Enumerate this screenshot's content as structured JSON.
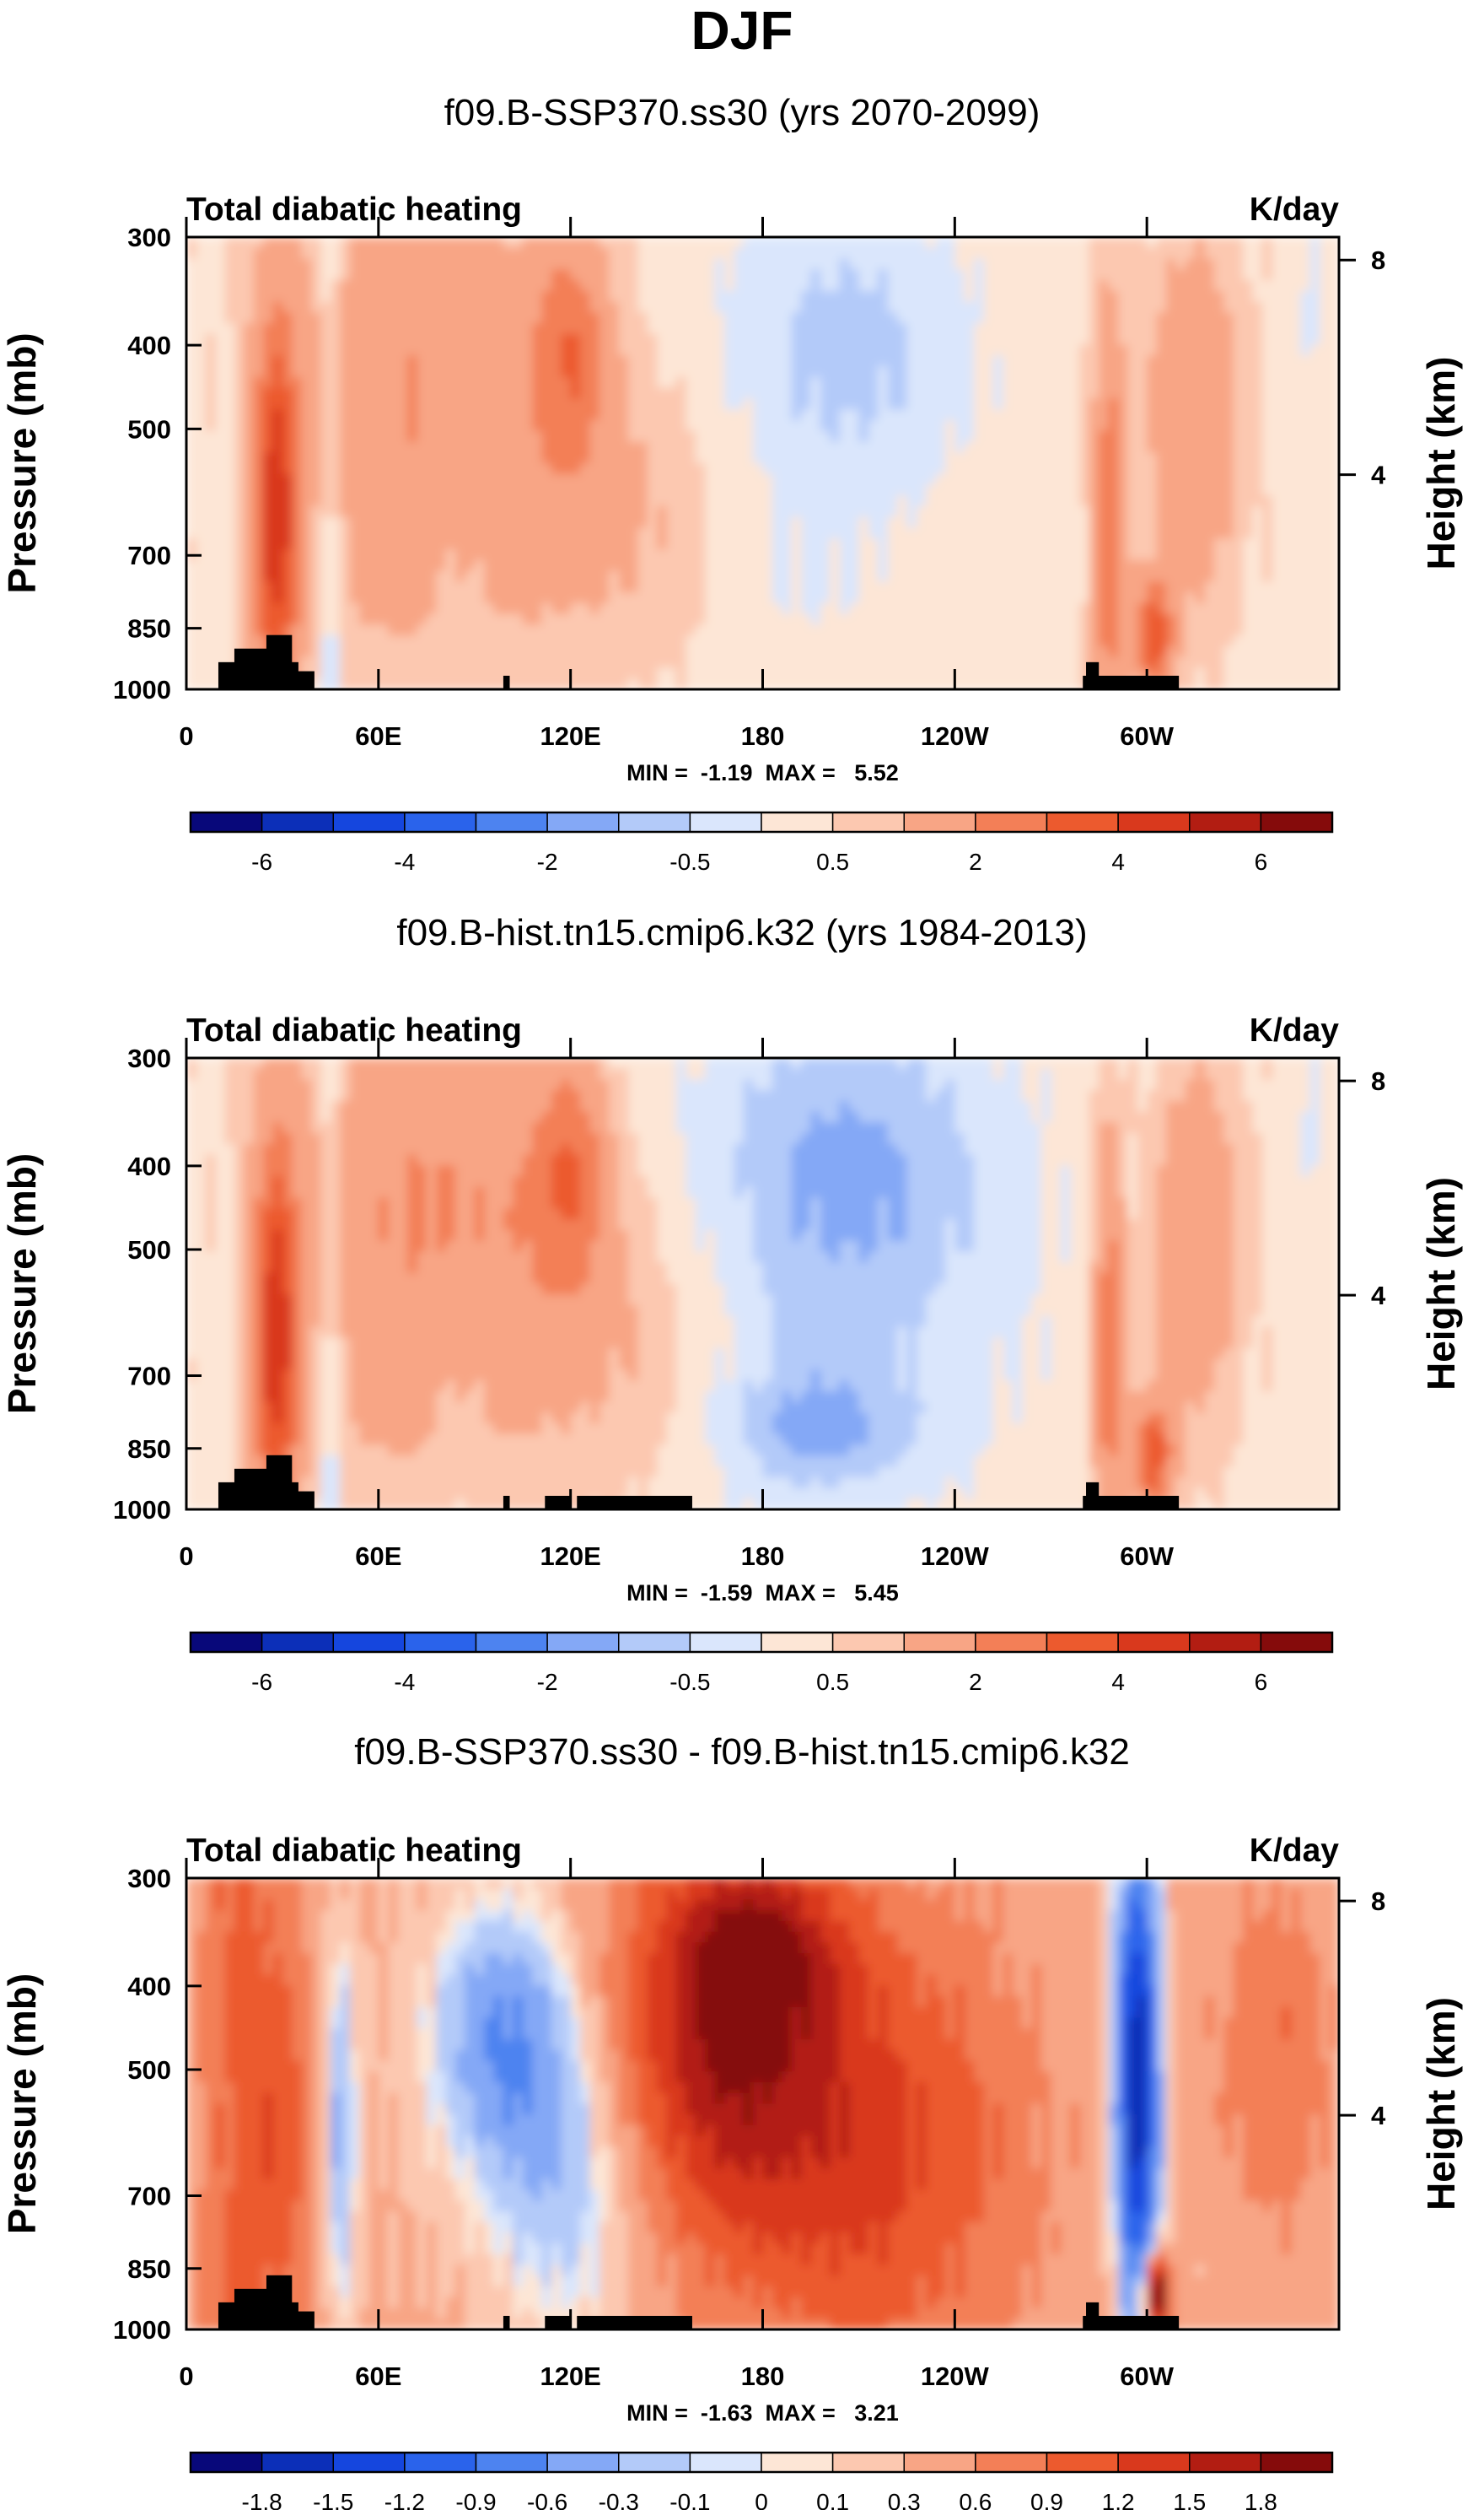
{
  "figure": {
    "title": "DJF"
  },
  "colors": {
    "ramp_neg": [
      "#08087a",
      "#0c2fb8",
      "#1546de",
      "#2a63eb",
      "#4d83f0",
      "#84a8f6",
      "#b3caf9",
      "#dae6fc"
    ],
    "ramp_pos": [
      "#fde6d6",
      "#fcc8b0",
      "#f8a585",
      "#f37f57",
      "#ec5a2e",
      "#d9391d",
      "#b21d12",
      "#850b0b"
    ],
    "terrain": "#000000"
  },
  "chart_data": [
    {
      "type": "heatmap",
      "title": "f09.B-SSP370.ss30 (yrs 2070-2099)",
      "left_label": "Total diabatic heating",
      "right_label": "K/day",
      "ylabel": "Pressure (mb)",
      "ylabel_right": "Height (km)",
      "x_ticks": [
        "0",
        "60E",
        "120E",
        "180",
        "120W",
        "60W"
      ],
      "x_tick_lon": [
        0,
        60,
        120,
        180,
        240,
        300
      ],
      "xlim": [
        0,
        360
      ],
      "y_ticks": [
        "300",
        "400",
        "500",
        "700",
        "850",
        "1000"
      ],
      "y_tick_p": [
        300,
        400,
        500,
        700,
        850,
        1000
      ],
      "ylim": [
        1000,
        300
      ],
      "right_ticks": [
        "8",
        "4"
      ],
      "right_tick_km": [
        8,
        4
      ],
      "stats": "MIN =  -1.19  MAX =   5.52",
      "min": -1.19,
      "max": 5.52,
      "colorbar_labels": [
        "-6",
        "-4",
        "-2",
        "-0.5",
        "0.5",
        "2",
        "4",
        "6"
      ],
      "colorbar_label_boundaries": [
        1,
        3,
        5,
        7,
        9,
        11,
        13,
        15
      ]
    },
    {
      "type": "heatmap",
      "title": "f09.B-hist.tn15.cmip6.k32 (yrs 1984-2013)",
      "left_label": "Total diabatic heating",
      "right_label": "K/day",
      "ylabel": "Pressure (mb)",
      "ylabel_right": "Height (km)",
      "x_ticks": [
        "0",
        "60E",
        "120E",
        "180",
        "120W",
        "60W"
      ],
      "x_tick_lon": [
        0,
        60,
        120,
        180,
        240,
        300
      ],
      "xlim": [
        0,
        360
      ],
      "y_ticks": [
        "300",
        "400",
        "500",
        "700",
        "850",
        "1000"
      ],
      "y_tick_p": [
        300,
        400,
        500,
        700,
        850,
        1000
      ],
      "ylim": [
        1000,
        300
      ],
      "right_ticks": [
        "8",
        "4"
      ],
      "right_tick_km": [
        8,
        4
      ],
      "stats": "MIN =  -1.59  MAX =   5.45",
      "min": -1.59,
      "max": 5.45,
      "colorbar_labels": [
        "-6",
        "-4",
        "-2",
        "-0.5",
        "0.5",
        "2",
        "4",
        "6"
      ],
      "colorbar_label_boundaries": [
        1,
        3,
        5,
        7,
        9,
        11,
        13,
        15
      ]
    },
    {
      "type": "heatmap",
      "title": "f09.B-SSP370.ss30 - f09.B-hist.tn15.cmip6.k32",
      "left_label": "Total diabatic heating",
      "right_label": "K/day",
      "ylabel": "Pressure (mb)",
      "ylabel_right": "Height (km)",
      "x_ticks": [
        "0",
        "60E",
        "120E",
        "180",
        "120W",
        "60W"
      ],
      "x_tick_lon": [
        0,
        60,
        120,
        180,
        240,
        300
      ],
      "xlim": [
        0,
        360
      ],
      "y_ticks": [
        "300",
        "400",
        "500",
        "700",
        "850",
        "1000"
      ],
      "y_tick_p": [
        300,
        400,
        500,
        700,
        850,
        1000
      ],
      "ylim": [
        1000,
        300
      ],
      "right_ticks": [
        "8",
        "4"
      ],
      "right_tick_km": [
        8,
        4
      ],
      "stats": "MIN =  -1.63  MAX =   3.21",
      "min": -1.63,
      "max": 3.21,
      "colorbar_labels": [
        "-1.8",
        "-1.5",
        "-1.2",
        "-0.9",
        "-0.6",
        "-0.3",
        "-0.1",
        "0",
        "0.1",
        "0.3",
        "0.6",
        "0.9",
        "1.2",
        "1.5",
        "1.8"
      ],
      "colorbar_label_boundaries": [
        1,
        2,
        3,
        4,
        5,
        6,
        7,
        8,
        9,
        10,
        11,
        12,
        13,
        14,
        15
      ]
    }
  ]
}
